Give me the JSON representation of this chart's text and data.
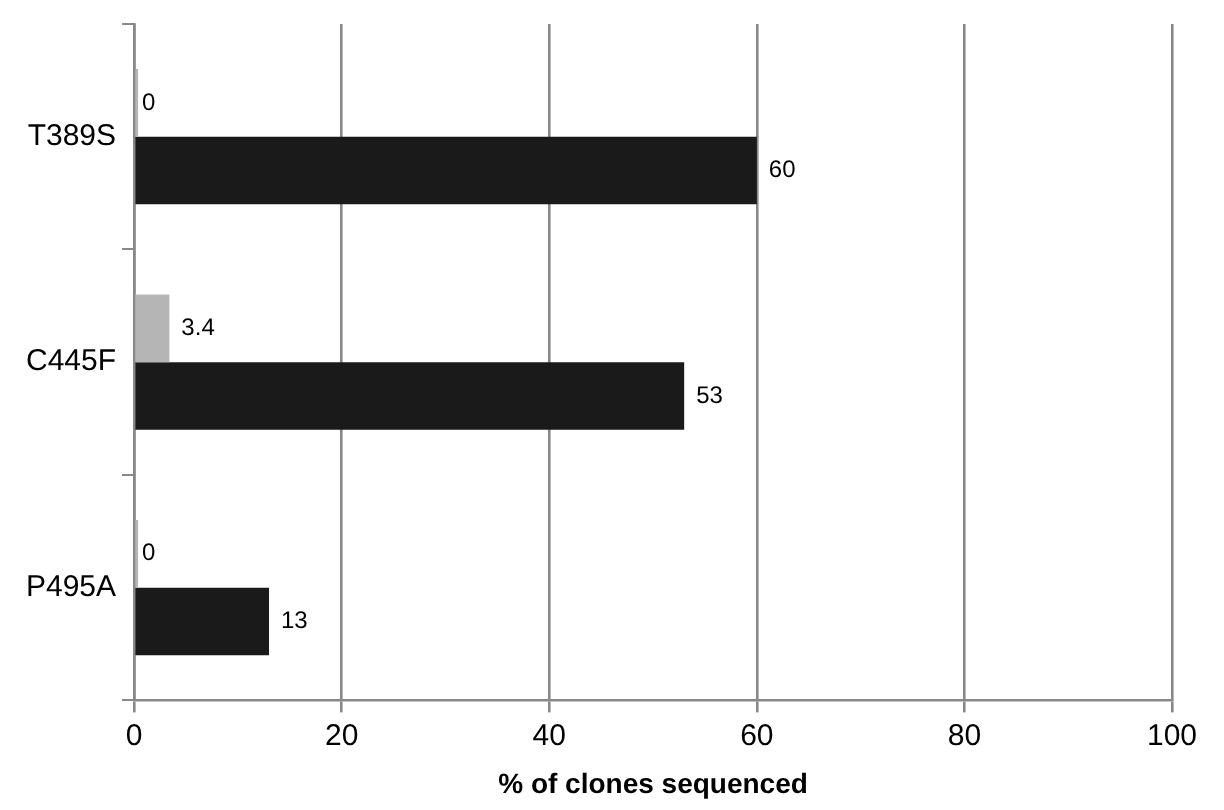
{
  "chart_data": {
    "type": "bar",
    "orientation": "horizontal",
    "xlabel": "% of clones sequenced",
    "categories": [
      "T389S",
      "C445F",
      "P495A"
    ],
    "series": [
      {
        "color": "#b5b5b5",
        "values": [
          0,
          3.4,
          0
        ]
      },
      {
        "color": "#1a1a1a",
        "values": [
          60,
          53,
          13
        ]
      }
    ],
    "xlim": [
      0,
      100
    ],
    "xticks": [
      0,
      20,
      40,
      60,
      80,
      100
    ],
    "grid": "x",
    "data_labels": true,
    "legend": false
  }
}
